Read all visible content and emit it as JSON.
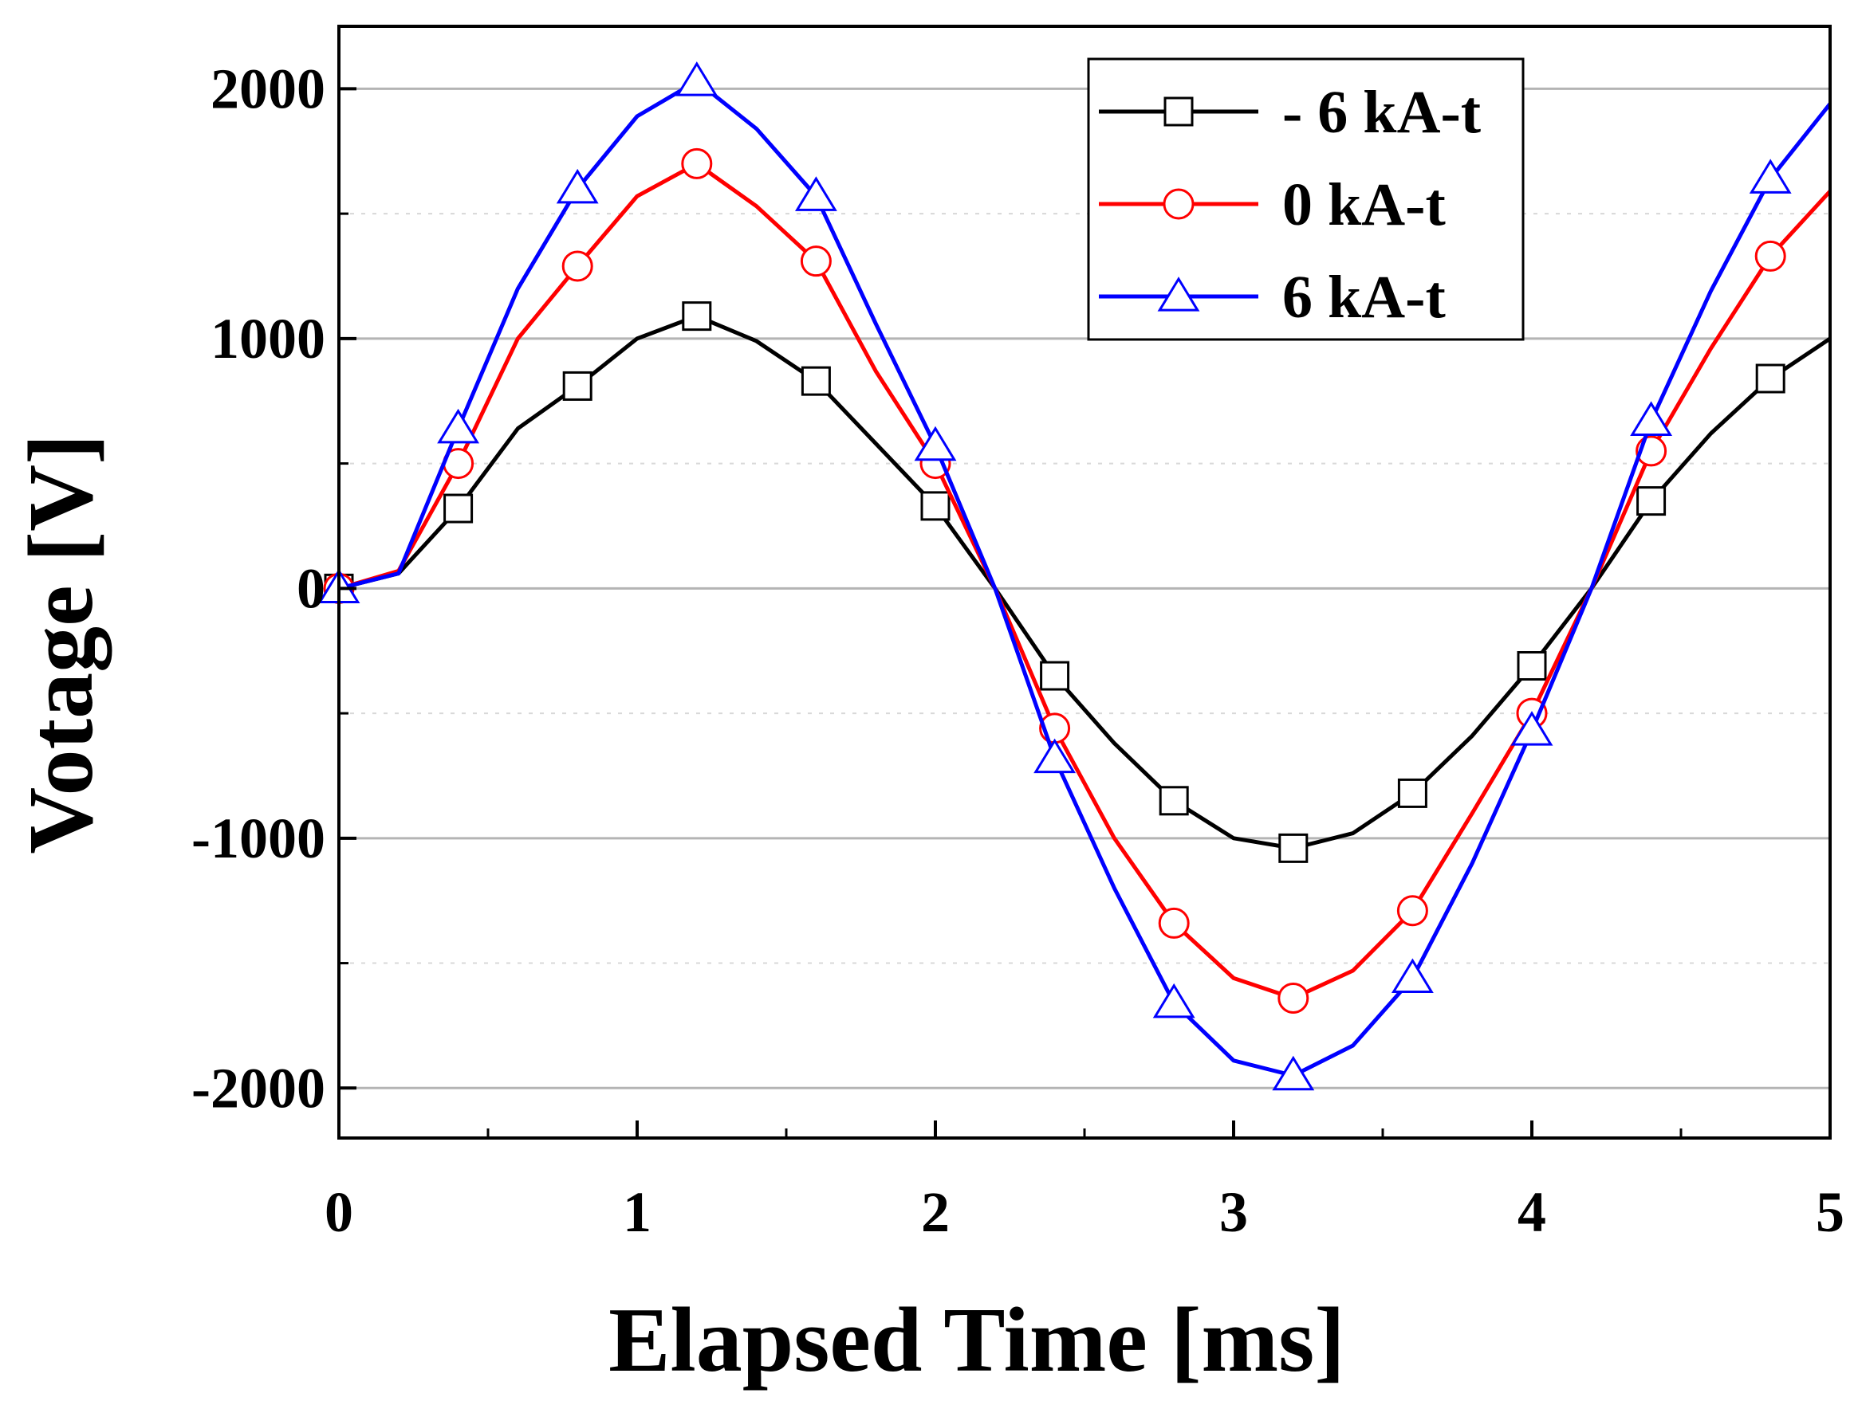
{
  "chart_data": {
    "type": "line",
    "title": "",
    "xlabel": "Elapsed Time [ms]",
    "ylabel": "Votage [V]",
    "xlim": [
      0,
      5
    ],
    "ylim": [
      -2200,
      2250
    ],
    "xticks": [
      0,
      1,
      2,
      3,
      4,
      5
    ],
    "xtick_labels": [
      "0",
      "1",
      "2",
      "3",
      "4",
      "5"
    ],
    "yticks": [
      2000,
      1000,
      0,
      -1000,
      -2000
    ],
    "ytick_labels": [
      "2000",
      "1000",
      "0",
      "-1000",
      "-2000"
    ],
    "grid": "horizontal",
    "legend_position": "top-right",
    "series": [
      {
        "name": "- 6 kA-t",
        "color": "#000000",
        "marker": "square",
        "x": [
          0,
          0.2,
          0.4,
          0.6,
          0.8,
          1.0,
          1.2,
          1.4,
          1.6,
          1.8,
          2.0,
          2.2,
          2.4,
          2.6,
          2.8,
          3.0,
          3.2,
          3.4,
          3.6,
          3.8,
          4.0,
          4.2,
          4.4,
          4.6,
          4.8,
          5.0
        ],
        "y": [
          0,
          60,
          320,
          640,
          810,
          1000,
          1090,
          990,
          830,
          580,
          330,
          0,
          -350,
          -620,
          -850,
          -1000,
          -1040,
          -980,
          -820,
          -590,
          -310,
          0,
          350,
          620,
          840,
          1000
        ],
        "marker_x": [
          0,
          0.4,
          0.8,
          1.2,
          1.6,
          2.0,
          2.4,
          2.8,
          3.2,
          3.6,
          4.0,
          4.4,
          4.8
        ]
      },
      {
        "name": "0 kA-t",
        "color": "#ff0000",
        "marker": "circle",
        "x": [
          0,
          0.2,
          0.4,
          0.6,
          0.8,
          1.0,
          1.2,
          1.4,
          1.6,
          1.8,
          2.0,
          2.2,
          2.4,
          2.6,
          2.8,
          3.0,
          3.2,
          3.4,
          3.6,
          3.8,
          4.0,
          4.2,
          4.4,
          4.6,
          4.8,
          5.0
        ],
        "y": [
          0,
          70,
          500,
          1000,
          1290,
          1570,
          1700,
          1530,
          1310,
          870,
          500,
          0,
          -560,
          -1000,
          -1340,
          -1560,
          -1640,
          -1530,
          -1290,
          -900,
          -500,
          0,
          550,
          960,
          1330,
          1590
        ],
        "marker_x": [
          0,
          0.4,
          0.8,
          1.2,
          1.6,
          2.0,
          2.4,
          2.8,
          3.2,
          3.6,
          4.0,
          4.4,
          4.8
        ]
      },
      {
        "name": "6 kA-t",
        "color": "#0000ff",
        "marker": "triangle",
        "x": [
          0,
          0.2,
          0.4,
          0.6,
          0.8,
          1.0,
          1.2,
          1.4,
          1.6,
          1.8,
          2.0,
          2.2,
          2.4,
          2.6,
          2.8,
          3.0,
          3.2,
          3.4,
          3.6,
          3.8,
          4.0,
          4.2,
          4.4,
          4.6,
          4.8,
          5.0
        ],
        "y": [
          0,
          60,
          640,
          1200,
          1600,
          1890,
          2030,
          1840,
          1570,
          1060,
          570,
          0,
          -680,
          -1200,
          -1660,
          -1890,
          -1950,
          -1830,
          -1560,
          -1100,
          -570,
          0,
          670,
          1190,
          1640,
          1940
        ],
        "marker_x": [
          0,
          0.4,
          0.8,
          1.2,
          1.6,
          2.0,
          2.4,
          2.8,
          3.2,
          3.6,
          4.0,
          4.4,
          4.8
        ]
      }
    ]
  }
}
